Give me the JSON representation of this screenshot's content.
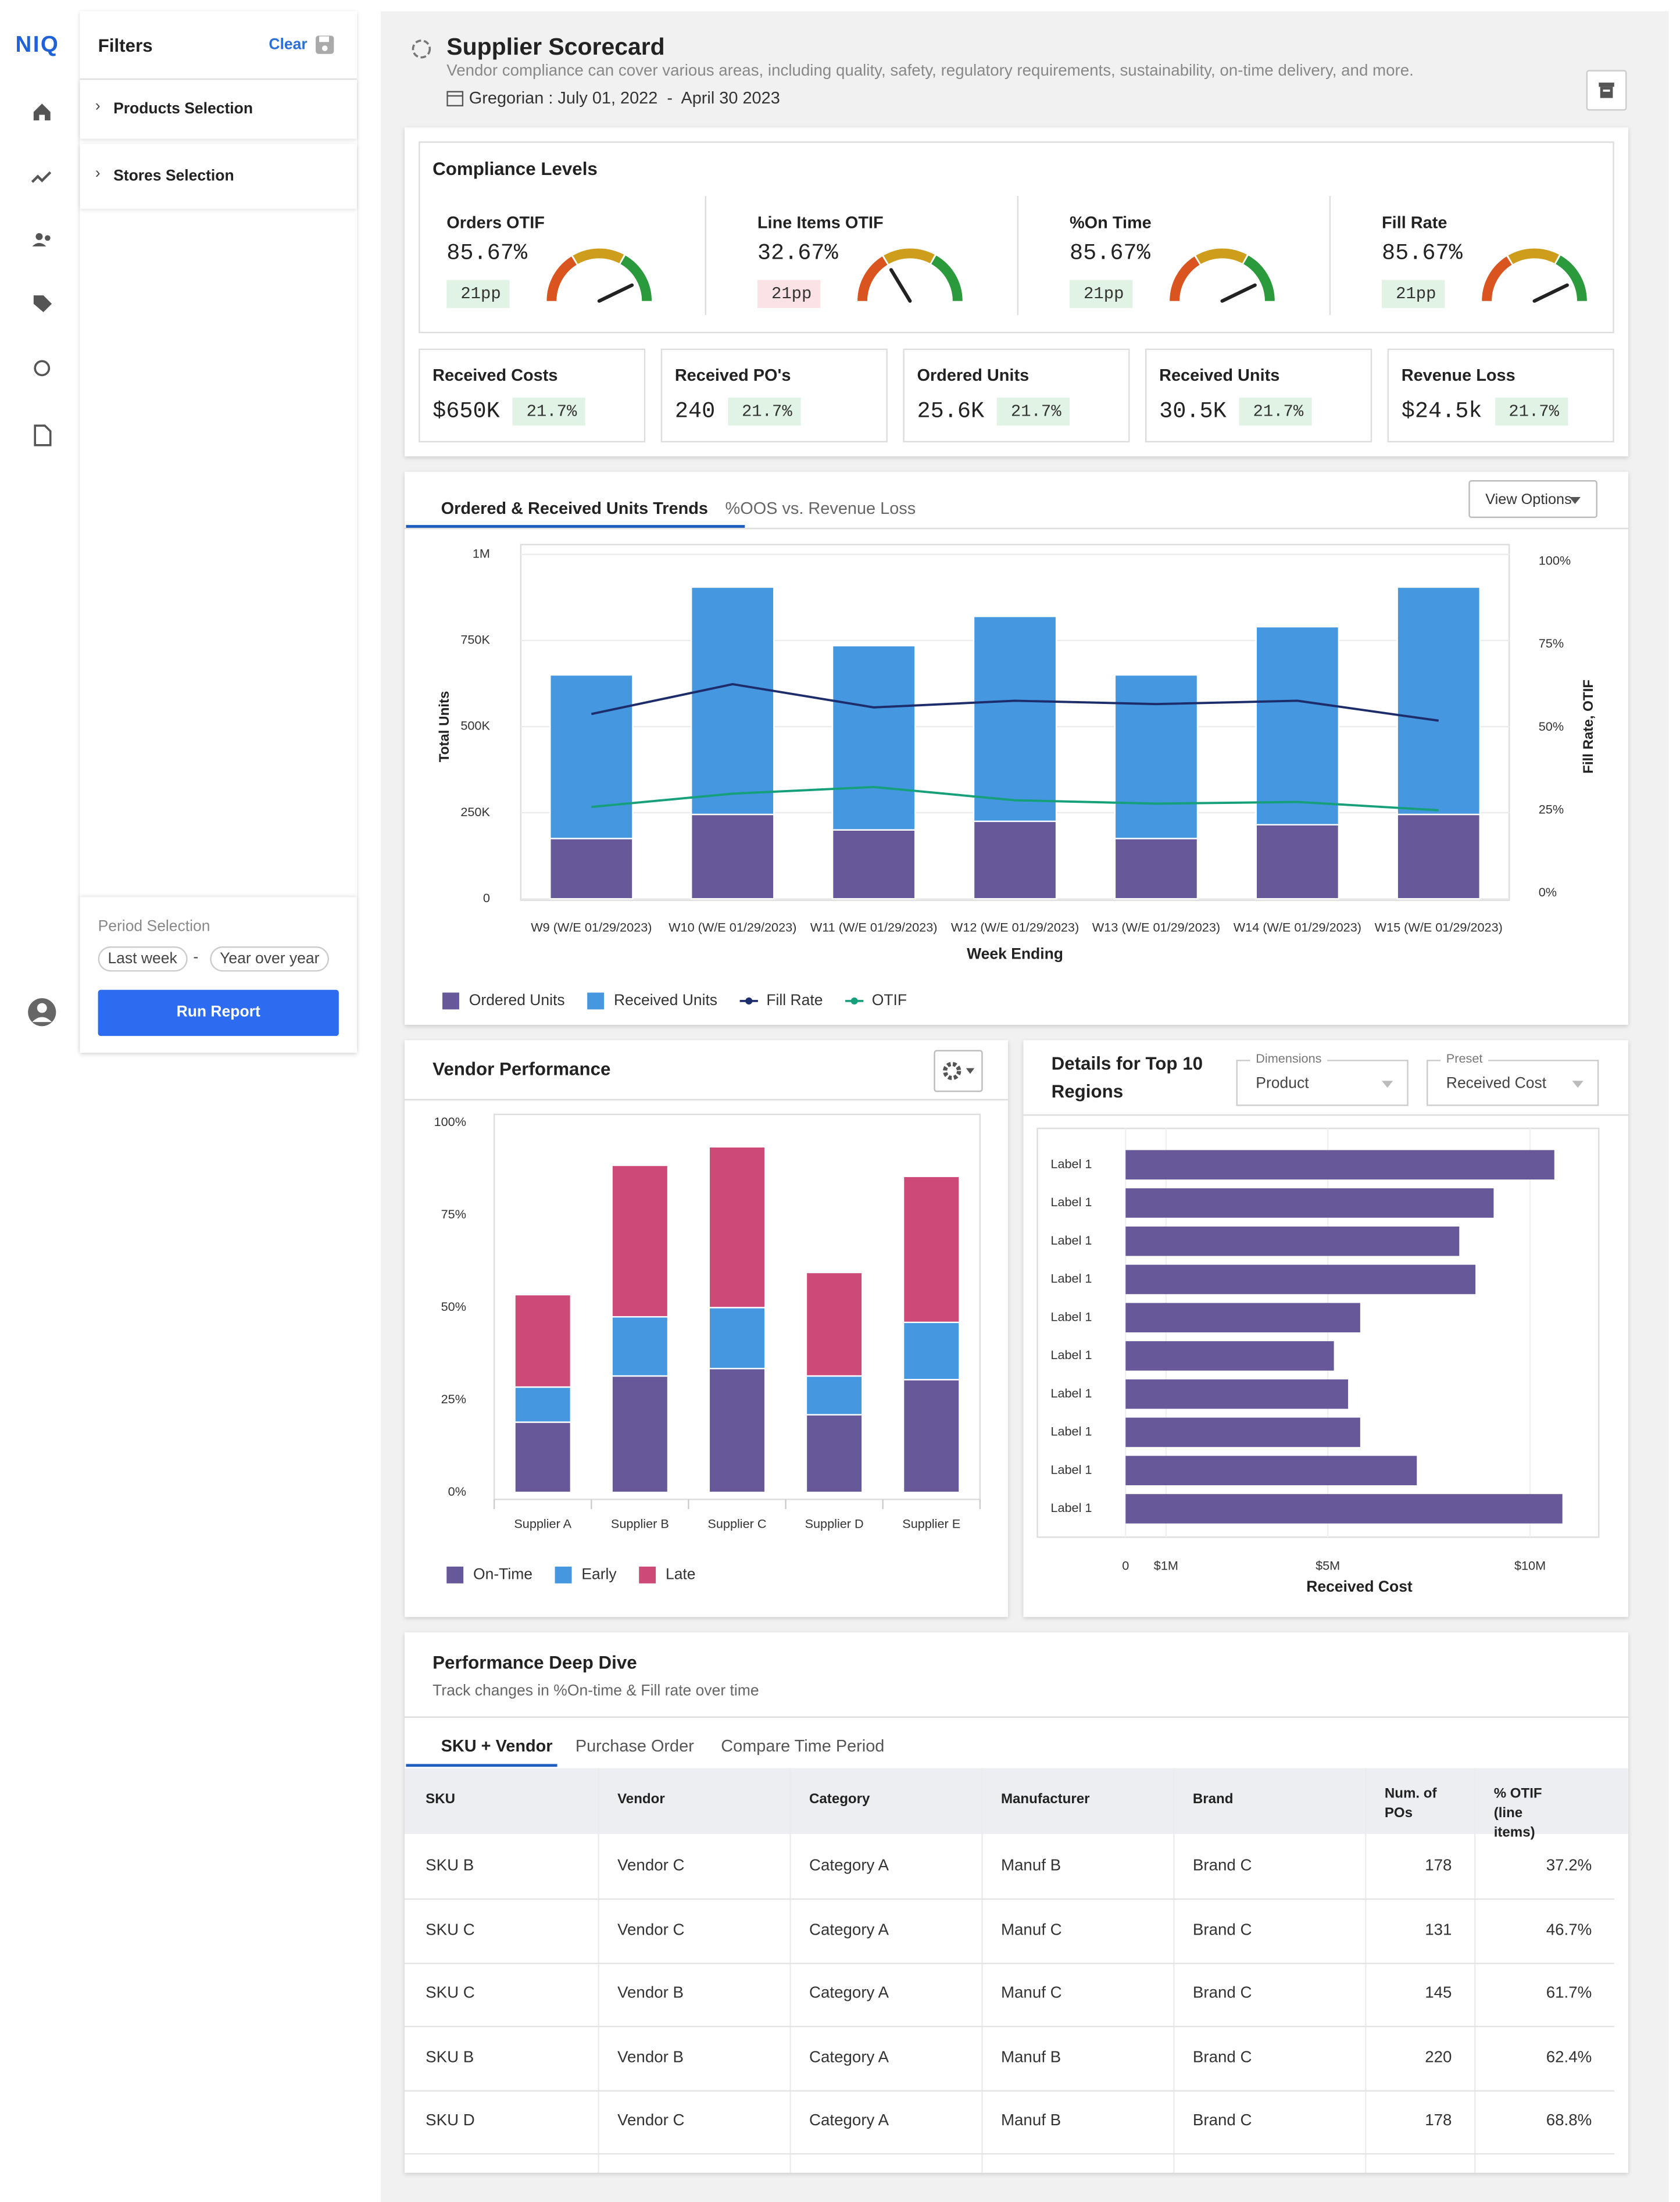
{
  "nav": {
    "logo": "NIQ"
  },
  "filters": {
    "title": "Filters",
    "clear": "Clear",
    "items": [
      "Products Selection",
      "Stores Selection"
    ],
    "period": {
      "title": "Period Selection",
      "options": [
        "Last week",
        "Year over year"
      ],
      "separator": "-",
      "button": "Run Report"
    }
  },
  "header": {
    "title": "Supplier Scorecard",
    "subtitle": "Vendor compliance can cover various areas, including quality, safety, regulatory requirements, sustainability, on-time delivery, and more.",
    "date": "Gregorian : July 01, 2022  -  April 30 2023"
  },
  "compliance": {
    "title": "Compliance Levels",
    "gauges": [
      {
        "label": "Orders OTIF",
        "value": 85.67,
        "value_label": "85.67%",
        "change": "21pp",
        "direction": "up"
      },
      {
        "label": "Line Items OTIF",
        "value": 32.67,
        "value_label": "32.67%",
        "change": "21pp",
        "direction": "down"
      },
      {
        "label": "%On Time",
        "value": 85.67,
        "value_label": "85.67%",
        "change": "21pp",
        "direction": "up"
      },
      {
        "label": "Fill Rate",
        "value": 85.67,
        "value_label": "85.67%",
        "change": "21pp",
        "direction": "up"
      }
    ]
  },
  "metrics": [
    {
      "label": "Received Costs",
      "value": "$650K",
      "change": "21.7%",
      "direction": "up"
    },
    {
      "label": "Received PO's",
      "value": "240",
      "change": "21.7%",
      "direction": "up"
    },
    {
      "label": "Ordered Units",
      "value": "25.6K",
      "change": "21.7%",
      "direction": "up"
    },
    {
      "label": "Received Units",
      "value": "30.5K",
      "change": "21.7%",
      "direction": "up"
    },
    {
      "label": "Revenue Loss",
      "value": "$24.5k",
      "change": "21.7%",
      "direction": "up"
    }
  ],
  "trends": {
    "tabs": [
      "Ordered & Received Units Trends",
      "%OOS vs. Revenue Loss"
    ],
    "button": "View Options"
  },
  "regions": {
    "dropdowns": [
      {
        "label": "Dimensions",
        "value": "Product"
      },
      {
        "label": "Preset",
        "value": "Received Cost"
      }
    ]
  },
  "chart_data": [
    {
      "type": "bar",
      "stacked": true,
      "categories": [
        "W9 (W/E 01/29/2023)",
        "W10 (W/E 01/29/2023)",
        "W11 (W/E 01/29/2023)",
        "W12 (W/E 01/29/2023)",
        "W13 (W/E 01/29/2023)",
        "W14 (W/E 01/29/2023)",
        "W15 (W/E 01/29/2023)"
      ],
      "series": [
        {
          "name": "Ordered Units",
          "color": "#67589a",
          "values": [
            175000,
            245000,
            200000,
            225000,
            175000,
            215000,
            245000
          ]
        },
        {
          "name": "Received Units",
          "color": "#4597e0",
          "values": [
            475000,
            660000,
            535000,
            595000,
            475000,
            575000,
            660000
          ]
        },
        {
          "name": "Fill Rate",
          "type": "line",
          "axis": "y2",
          "color": "#1d2d6c",
          "values": [
            54,
            63,
            56,
            58,
            57,
            58,
            52
          ]
        },
        {
          "name": "OTIF",
          "type": "line",
          "axis": "y2",
          "color": "#15a07a",
          "values": [
            26,
            30,
            32,
            28,
            27,
            27.5,
            25
          ]
        }
      ],
      "xlabel": "Week Ending",
      "ylabel": "Total Units",
      "y2label": "Fill Rate, OTIF",
      "ylim": [
        0,
        1000000
      ],
      "yticks": [
        0,
        {
          "value": 250000,
          "label": "250K"
        },
        {
          "value": 500000,
          "label": "500K"
        },
        {
          "value": 750000,
          "label": "750K"
        },
        {
          "value": 1000000,
          "label": "1M"
        }
      ],
      "y2lim": [
        0,
        100
      ],
      "y2ticks": [
        {
          "value": 0,
          "label": "0%"
        },
        {
          "value": 25,
          "label": "25%"
        },
        {
          "value": 50,
          "label": "50%"
        },
        {
          "value": 75,
          "label": "75%"
        },
        {
          "value": 100,
          "label": "100%"
        }
      ],
      "grid": true,
      "legend": "bottom"
    },
    {
      "type": "bar",
      "stacked": true,
      "title": "Vendor Performance",
      "categories": [
        "Supplier A",
        "Supplier B",
        "Supplier C",
        "Supplier D",
        "Supplier E"
      ],
      "series": [
        {
          "name": "On-Time",
          "color": "#67589a",
          "values": [
            19,
            31.5,
            33.5,
            21,
            30.5
          ]
        },
        {
          "name": "Early",
          "color": "#4597e0",
          "values": [
            9.5,
            16,
            16.5,
            10.5,
            15.5
          ]
        },
        {
          "name": "Late",
          "color": "#cd4a78",
          "values": [
            25,
            41,
            43.5,
            28,
            39.5
          ]
        }
      ],
      "ylim": [
        0,
        100
      ],
      "yticks": [
        {
          "value": 0,
          "label": "0%"
        },
        {
          "value": 25,
          "label": "25%"
        },
        {
          "value": 50,
          "label": "50%"
        },
        {
          "value": 75,
          "label": "75%"
        },
        {
          "value": 100,
          "label": "100%"
        }
      ],
      "grid": false,
      "legend": "bottom"
    },
    {
      "type": "bar",
      "orientation": "horizontal",
      "title": "Details for Top 10 Regions",
      "categories": [
        "Label 1",
        "Label 1",
        "Label 1",
        "Label 1",
        "Label 1",
        "Label 1",
        "Label 1",
        "Label 1",
        "Label 1",
        "Label 1"
      ],
      "values": [
        10600000,
        9100000,
        8250000,
        8650000,
        5800000,
        5150000,
        5500000,
        5800000,
        7200000,
        10800000
      ],
      "color": "#67589a",
      "xlabel": "Received Cost",
      "xlim": [
        0,
        11700000
      ],
      "xticks": [
        0,
        {
          "value": 1000000,
          "label": "$1M"
        },
        {
          "value": 5000000,
          "label": "$5M"
        },
        {
          "value": 10000000,
          "label": "$10M"
        }
      ],
      "grid": true
    }
  ],
  "table": {
    "title": "Performance Deep Dive",
    "subtitle": "Track changes in %On-time & Fill rate over time",
    "tabs": [
      "SKU + Vendor",
      "Purchase Order",
      "Compare Time Period"
    ],
    "columns": [
      "SKU",
      "Vendor",
      "Category",
      "Manufacturer",
      "Brand",
      "Num. of POs",
      "% OTIF (line items)"
    ],
    "sort_column": 6,
    "sort_direction": "desc",
    "rows": [
      [
        "SKU B",
        "Vendor C",
        "Category A",
        "Manuf B",
        "Brand C",
        "178",
        "37.2%"
      ],
      [
        "SKU C",
        "Vendor C",
        "Category A",
        "Manuf C",
        "Brand C",
        "131",
        "46.7%"
      ],
      [
        "SKU C",
        "Vendor B",
        "Category A",
        "Manuf C",
        "Brand C",
        "145",
        "61.7%"
      ],
      [
        "SKU B",
        "Vendor B",
        "Category A",
        "Manuf B",
        "Brand C",
        "220",
        "62.4%"
      ],
      [
        "SKU D",
        "Vendor C",
        "Category A",
        "Manuf B",
        "Brand C",
        "178",
        "68.8%"
      ]
    ]
  }
}
